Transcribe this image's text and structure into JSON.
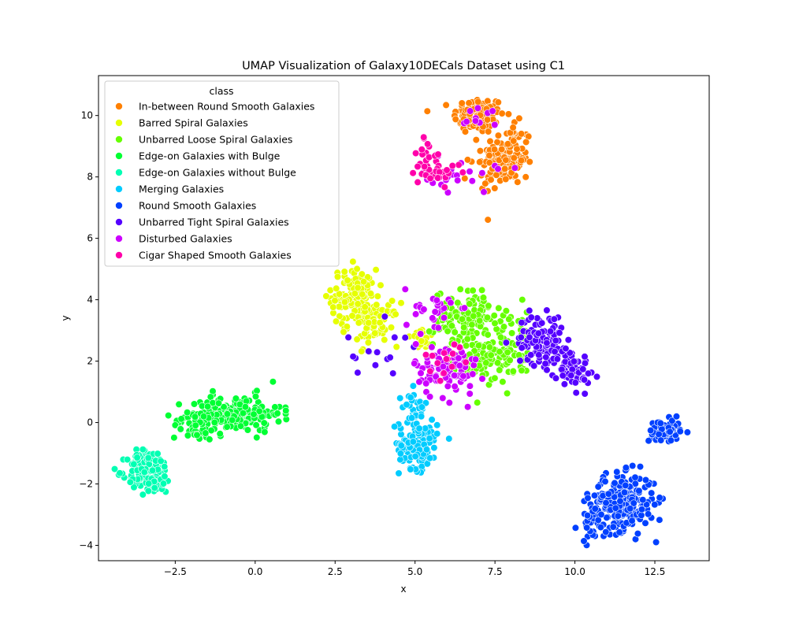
{
  "chart_data": {
    "type": "scatter",
    "title": "UMAP Visualization of Galaxy10DECals Dataset using C1",
    "xlabel": "x",
    "ylabel": "y",
    "xlim": [
      -4.9,
      14.2
    ],
    "ylim": [
      -4.5,
      11.3
    ],
    "xticks": [
      "−2.5",
      "0.0",
      "2.5",
      "5.0",
      "7.5",
      "10.0",
      "12.5"
    ],
    "xtick_values": [
      -2.5,
      0,
      2.5,
      5,
      7.5,
      10,
      12.5
    ],
    "yticks": [
      "−4",
      "−2",
      "0",
      "2",
      "4",
      "6",
      "8",
      "10"
    ],
    "ytick_values": [
      -4,
      -2,
      0,
      2,
      4,
      6,
      8,
      10
    ],
    "grid": false,
    "legend_title": "class",
    "legend_position": "top-left",
    "series": [
      {
        "name": "In-between Round Smooth Galaxies",
        "color": "#ff8000",
        "clusters": [
          {
            "cx": 7.0,
            "cy": 10.0,
            "sx": 0.4,
            "sy": 0.3,
            "n": 120
          },
          {
            "cx": 7.9,
            "cy": 8.7,
            "sx": 0.4,
            "sy": 0.5,
            "n": 110
          },
          {
            "cx": 7.3,
            "cy": 8.2,
            "sx": 0.3,
            "sy": 0.3,
            "n": 30
          }
        ]
      },
      {
        "name": "Barred Spiral Galaxies",
        "color": "#e6ff00",
        "clusters": [
          {
            "cx": 3.1,
            "cy": 4.1,
            "sx": 0.35,
            "sy": 0.45,
            "n": 130
          },
          {
            "cx": 3.7,
            "cy": 3.2,
            "sx": 0.4,
            "sy": 0.35,
            "n": 60
          },
          {
            "cx": 5.3,
            "cy": 2.7,
            "sx": 0.2,
            "sy": 0.15,
            "n": 25
          }
        ]
      },
      {
        "name": "Unbarred Loose Spiral Galaxies",
        "color": "#66ff00",
        "clusters": [
          {
            "cx": 6.7,
            "cy": 3.4,
            "sx": 0.55,
            "sy": 0.45,
            "n": 130
          },
          {
            "cx": 7.2,
            "cy": 2.0,
            "sx": 0.5,
            "sy": 0.35,
            "n": 100
          },
          {
            "cx": 8.2,
            "cy": 2.5,
            "sx": 0.4,
            "sy": 0.5,
            "n": 40
          }
        ]
      },
      {
        "name": "Edge-on Galaxies with Bulge",
        "color": "#00ff33",
        "clusters": [
          {
            "cx": -0.6,
            "cy": 0.3,
            "sx": 0.7,
            "sy": 0.3,
            "n": 170
          },
          {
            "cx": -1.8,
            "cy": -0.1,
            "sx": 0.4,
            "sy": 0.25,
            "n": 50
          }
        ]
      },
      {
        "name": "Edge-on Galaxies without Bulge",
        "color": "#00ffb3",
        "clusters": [
          {
            "cx": -3.3,
            "cy": -1.6,
            "sx": 0.35,
            "sy": 0.35,
            "n": 160
          }
        ]
      },
      {
        "name": "Merging Galaxies",
        "color": "#00ccff",
        "clusters": [
          {
            "cx": 5.1,
            "cy": -0.7,
            "sx": 0.3,
            "sy": 0.4,
            "n": 130
          },
          {
            "cx": 5.0,
            "cy": 0.5,
            "sx": 0.2,
            "sy": 0.3,
            "n": 30
          }
        ]
      },
      {
        "name": "Round Smooth Galaxies",
        "color": "#0040ff",
        "clusters": [
          {
            "cx": 11.5,
            "cy": -2.6,
            "sx": 0.5,
            "sy": 0.45,
            "n": 230
          },
          {
            "cx": 12.8,
            "cy": -0.3,
            "sx": 0.25,
            "sy": 0.2,
            "n": 70
          },
          {
            "cx": 10.6,
            "cy": -3.2,
            "sx": 0.2,
            "sy": 0.3,
            "n": 30
          }
        ]
      },
      {
        "name": "Unbarred Tight Spiral Galaxies",
        "color": "#5500ff",
        "clusters": [
          {
            "cx": 8.9,
            "cy": 2.7,
            "sx": 0.35,
            "sy": 0.4,
            "n": 100
          },
          {
            "cx": 9.8,
            "cy": 1.8,
            "sx": 0.35,
            "sy": 0.35,
            "n": 70
          },
          {
            "cx": 4.0,
            "cy": 2.3,
            "sx": 0.6,
            "sy": 0.4,
            "n": 15
          }
        ]
      },
      {
        "name": "Disturbed Galaxies",
        "color": "#cc00ff",
        "clusters": [
          {
            "cx": 6.0,
            "cy": 1.7,
            "sx": 0.5,
            "sy": 0.45,
            "n": 90
          },
          {
            "cx": 5.5,
            "cy": 3.6,
            "sx": 0.4,
            "sy": 0.4,
            "n": 30
          },
          {
            "cx": 6.4,
            "cy": 8.0,
            "sx": 0.6,
            "sy": 0.25,
            "n": 25
          },
          {
            "cx": 7.0,
            "cy": 10.0,
            "sx": 0.3,
            "sy": 0.25,
            "n": 10
          }
        ]
      },
      {
        "name": "Cigar Shaped Smooth Galaxies",
        "color": "#ff00aa",
        "clusters": [
          {
            "cx": 5.4,
            "cy": 8.5,
            "sx": 0.2,
            "sy": 0.45,
            "n": 30
          },
          {
            "cx": 5.9,
            "cy": 8.1,
            "sx": 0.3,
            "sy": 0.15,
            "n": 12
          },
          {
            "cx": 6.1,
            "cy": 2.1,
            "sx": 0.4,
            "sy": 0.3,
            "n": 15
          }
        ]
      }
    ]
  }
}
